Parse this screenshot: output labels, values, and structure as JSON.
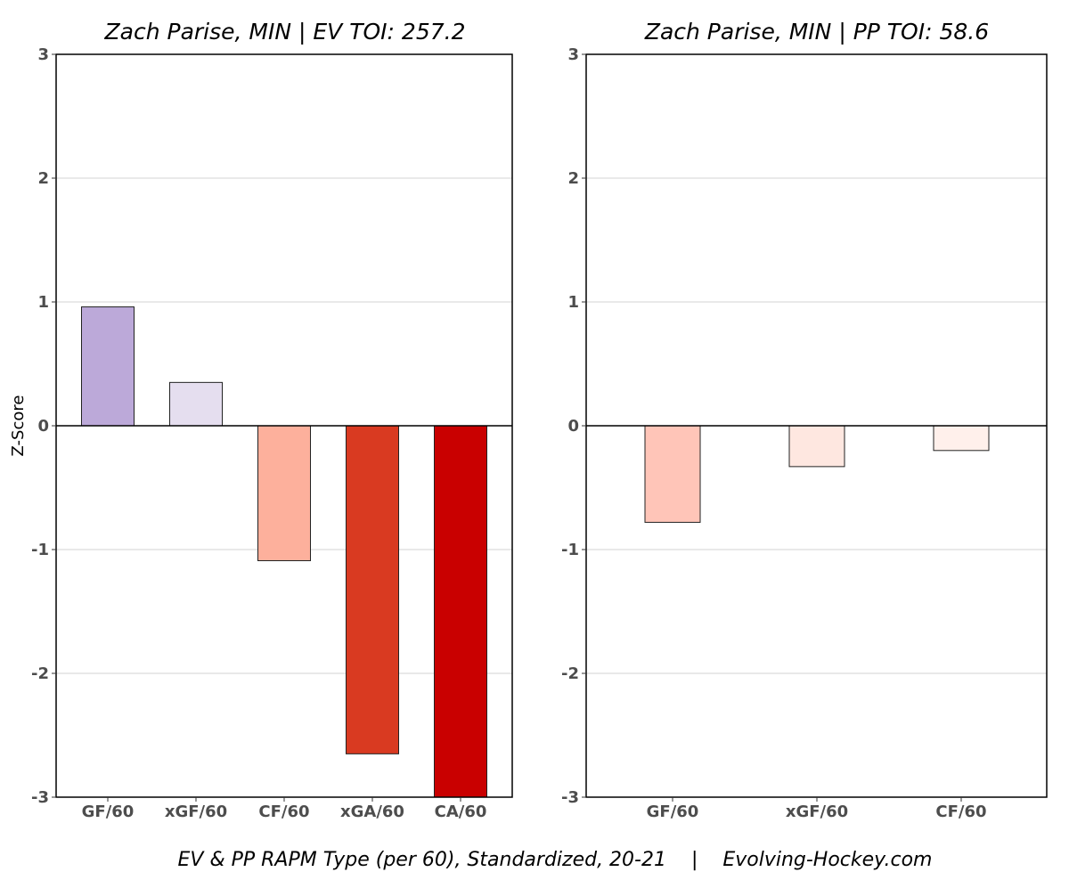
{
  "caption": "EV & PP RAPM Type (per 60), Standardized, 20-21    |    Evolving-Hockey.com",
  "chart_data": [
    {
      "type": "bar",
      "title": "Zach Parise, MIN  |  EV TOI: 257.2",
      "ylabel": "Z-Score",
      "ylim": [
        -3,
        3
      ],
      "yticks": [
        3,
        2,
        1,
        0,
        -1,
        -2,
        -3
      ],
      "grid": "horizontal",
      "categories": [
        "GF/60",
        "xGF/60",
        "CF/60",
        "xGA/60",
        "CA/60"
      ],
      "values": [
        0.96,
        0.35,
        -1.09,
        -2.65,
        -3.0
      ],
      "colors": [
        "#bca9d9",
        "#e5deef",
        "#fdb09c",
        "#d93a21",
        "#c90000"
      ]
    },
    {
      "type": "bar",
      "title": "Zach Parise, MIN  |  PP TOI: 58.6",
      "ylabel": "",
      "ylim": [
        -3,
        3
      ],
      "yticks": [
        3,
        2,
        1,
        0,
        -1,
        -2,
        -3
      ],
      "grid": "horizontal",
      "categories": [
        "GF/60",
        "xGF/60",
        "CF/60"
      ],
      "values": [
        -0.78,
        -0.33,
        -0.2
      ],
      "colors": [
        "#ffc5b8",
        "#fee7e0",
        "#fff0eb"
      ]
    }
  ]
}
